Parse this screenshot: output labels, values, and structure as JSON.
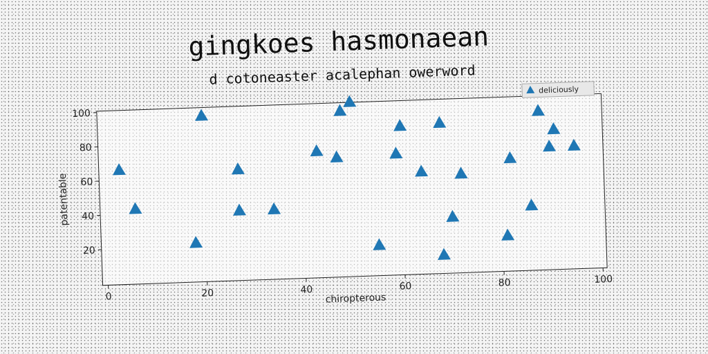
{
  "chart_data": {
    "type": "scatter",
    "title": "gingkoes hasmonaean",
    "subtitle": "d cotoneaster acalephan owerword",
    "xlabel": "chiropterous",
    "ylabel": "patentable",
    "xlim": [
      0,
      100
    ],
    "ylim": [
      0,
      100
    ],
    "xticks": [
      0,
      20,
      40,
      60,
      80,
      100
    ],
    "yticks": [
      20,
      40,
      60,
      80,
      100
    ],
    "grid": false,
    "legend_position": "top-right",
    "series": [
      {
        "name": "deliciously",
        "marker": "triangle",
        "color": "#1f77b4",
        "x": [
          3,
          6,
          18,
          20,
          27,
          27,
          34,
          43,
          47,
          48,
          50,
          55,
          59,
          60,
          64,
          68,
          68,
          70,
          72,
          81,
          82,
          86,
          88,
          90,
          91,
          95
        ],
        "y": [
          66,
          43,
          22,
          96,
          64,
          40,
          40,
          73,
          69,
          96,
          101,
          17,
          70,
          86,
          59,
          87,
          10,
          32,
          57,
          20,
          65,
          37,
          92,
          71,
          81,
          71
        ]
      }
    ]
  }
}
